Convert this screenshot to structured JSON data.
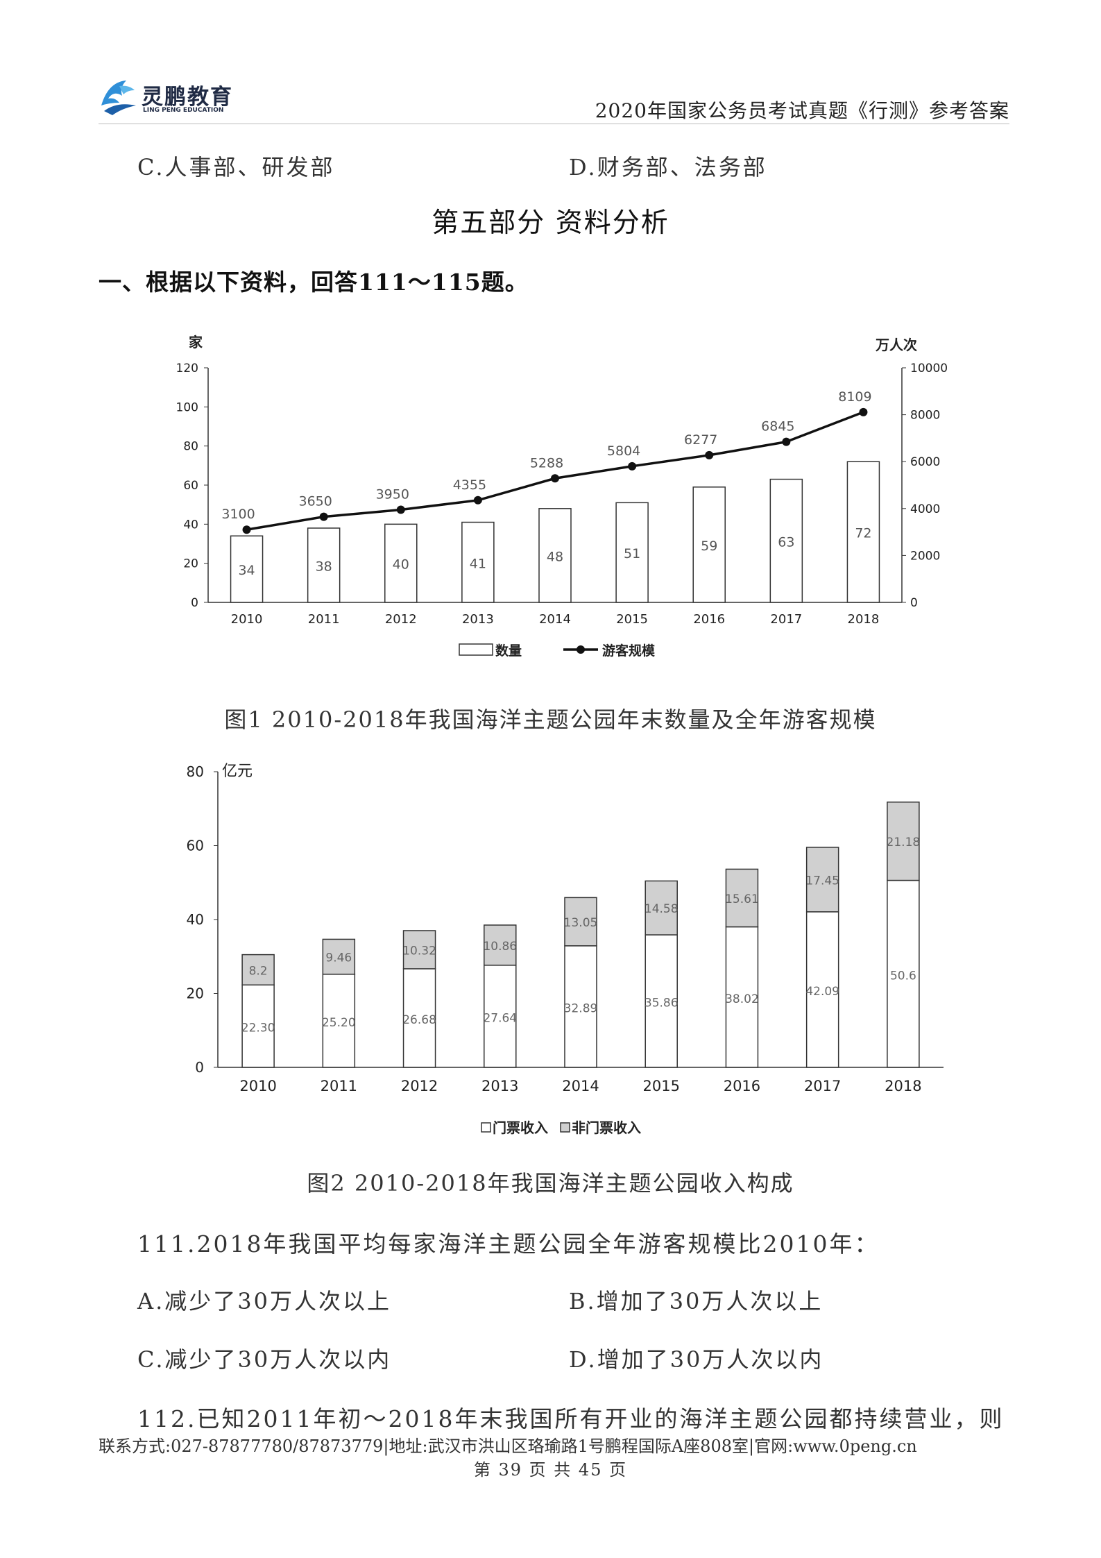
{
  "header": {
    "logo_text": "灵鹏教育",
    "logo_sub": "LING PENG EDUCATION",
    "doc_title": "2020年国家公务员考试真题《行测》参考答案"
  },
  "prev_options": {
    "c": "C.人事部、研发部",
    "d": "D.财务部、法务部"
  },
  "section_title": "第五部分  资料分析",
  "intro": "一、根据以下资料，回答111～115题。",
  "chart_data": [
    {
      "type": "bar+line",
      "title": "图1 2010-2018年我国海洋主题公园年末数量及全年游客规模",
      "categories": [
        "2010",
        "2011",
        "2012",
        "2013",
        "2014",
        "2015",
        "2016",
        "2017",
        "2018"
      ],
      "left_unit": "家",
      "right_unit": "万人次",
      "ylim_left": [
        0,
        120
      ],
      "yticks_left": [
        0,
        20,
        40,
        60,
        80,
        100,
        120
      ],
      "ylim_right": [
        0,
        10000
      ],
      "yticks_right": [
        0,
        2000,
        4000,
        6000,
        8000,
        10000
      ],
      "series": [
        {
          "name": "数量",
          "kind": "bar",
          "axis": "left",
          "values": [
            34,
            38,
            40,
            41,
            48,
            51,
            59,
            63,
            72
          ]
        },
        {
          "name": "游客规模",
          "kind": "line",
          "axis": "right",
          "values": [
            3100,
            3650,
            3950,
            4355,
            5288,
            5804,
            6277,
            6845,
            8109
          ]
        }
      ]
    },
    {
      "type": "stacked-bar",
      "title": "图2 2010-2018年我国海洋主题公园收入构成",
      "categories": [
        "2010",
        "2011",
        "2012",
        "2013",
        "2014",
        "2015",
        "2016",
        "2017",
        "2018"
      ],
      "unit": "亿元",
      "ylim": [
        0,
        80
      ],
      "yticks": [
        0,
        20,
        40,
        60,
        80
      ],
      "series": [
        {
          "name": "门票收入",
          "values": [
            22.3,
            25.2,
            26.68,
            27.64,
            32.89,
            35.86,
            38.02,
            42.09,
            50.6
          ],
          "labels": [
            "22.30",
            "25.20",
            "26.68",
            "27.64",
            "32.89",
            "35.86",
            "38.02",
            "42.09",
            "50.6"
          ]
        },
        {
          "name": "非门票收入",
          "values": [
            8.2,
            9.46,
            10.32,
            10.86,
            13.05,
            14.58,
            15.61,
            17.45,
            21.18
          ],
          "labels": [
            "8.2",
            "9.46",
            "10.32",
            "10.86",
            "13.05",
            "14.58",
            "15.61",
            "17.45",
            "21.18"
          ]
        }
      ]
    }
  ],
  "q111": {
    "stem": "111.2018年我国平均每家海洋主题公园全年游客规模比2010年：",
    "a": "A.减少了30万人次以上",
    "b": "B.增加了30万人次以上",
    "c": "C.减少了30万人次以内",
    "d": "D.增加了30万人次以内"
  },
  "q112": {
    "stem": "112.已知2011年初～2018年末我国所有开业的海洋主题公园都持续营业，则"
  },
  "footer": {
    "contact": "联系方式:027-87877780/87873779|地址:武汉市洪山区珞瑜路1号鹏程国际A座808室|官网:www.0peng.cn",
    "page": "第 39 页 共 45 页"
  },
  "colors": {
    "bar_fill": "#ffffff",
    "bar_stroke": "#333333",
    "non_ticket_fill": "#d0d0d0",
    "line": "#111111"
  }
}
